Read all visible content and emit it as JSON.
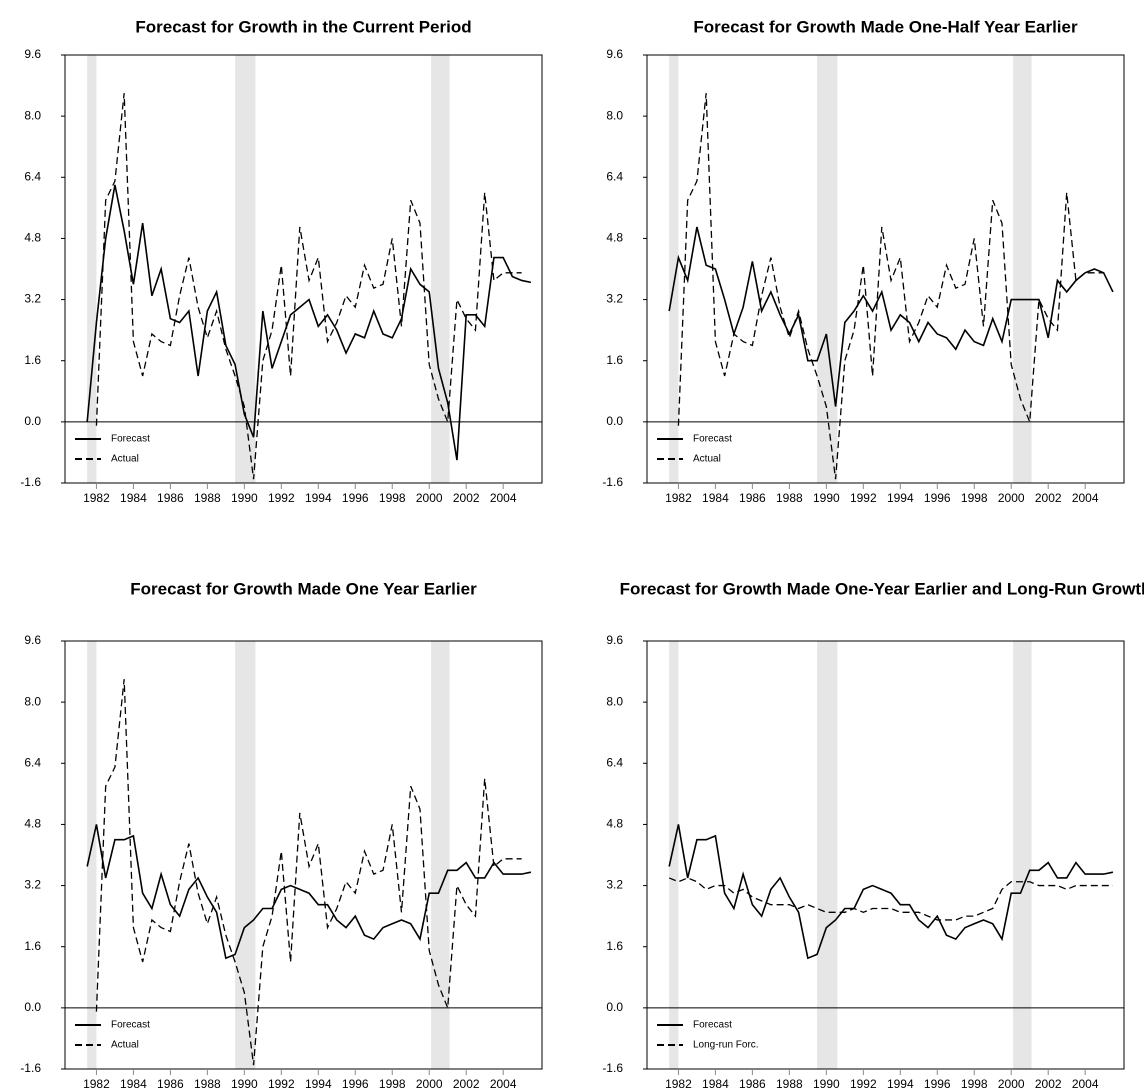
{
  "chart_data": [
    {
      "type": "line",
      "title": "Forecast for Growth in the Current Period",
      "x": [
        1981.5,
        1982,
        1982.5,
        1983,
        1983.5,
        1984,
        1984.5,
        1985,
        1985.5,
        1986,
        1986.5,
        1987,
        1987.5,
        1988,
        1988.5,
        1989,
        1989.5,
        1990,
        1990.5,
        1991,
        1991.5,
        1992,
        1992.5,
        1993,
        1993.5,
        1994,
        1994.5,
        1995,
        1995.5,
        1996,
        1996.5,
        1997,
        1997.5,
        1998,
        1998.5,
        1999,
        1999.5,
        2000,
        2000.5,
        2001,
        2001.5,
        2002,
        2002.5,
        2003,
        2003.5,
        2004,
        2004.5,
        2005,
        2005.5
      ],
      "series": [
        {
          "name": "Forecast",
          "color": "#000000",
          "line_style": "solid",
          "values": [
            0.0,
            2.6,
            4.8,
            6.2,
            5.0,
            3.6,
            5.2,
            3.3,
            4.0,
            2.7,
            2.6,
            2.9,
            1.2,
            2.9,
            3.4,
            2.0,
            1.5,
            0.2,
            -0.4,
            2.9,
            1.4,
            2.1,
            2.8,
            3.0,
            3.2,
            2.5,
            2.8,
            2.4,
            1.8,
            2.3,
            2.2,
            2.9,
            2.3,
            2.2,
            2.7,
            4.0,
            3.6,
            3.4,
            1.4,
            0.5,
            -1.0,
            2.8,
            2.8,
            2.5,
            4.3,
            4.3,
            3.8,
            3.7,
            3.65
          ]
        },
        {
          "name": "Actual",
          "color": "#000000",
          "line_style": "dashed",
          "values": [
            null,
            -0.1,
            5.8,
            6.3,
            8.6,
            2.1,
            1.2,
            2.3,
            2.1,
            2.0,
            3.3,
            4.3,
            3.0,
            2.2,
            2.9,
            1.9,
            1.2,
            0.4,
            -1.5,
            1.6,
            2.4,
            4.1,
            1.2,
            5.1,
            3.7,
            4.3,
            2.1,
            2.6,
            3.3,
            3.0,
            4.1,
            3.5,
            3.6,
            4.8,
            2.5,
            5.8,
            5.2,
            1.5,
            0.6,
            0.0,
            3.2,
            2.7,
            2.4,
            6.0,
            3.7,
            3.9,
            3.9,
            3.9,
            null
          ]
        }
      ],
      "xlim": [
        1980.3,
        2006.1
      ],
      "xticks": [
        1982,
        1984,
        1986,
        1988,
        1990,
        1992,
        1994,
        1996,
        1998,
        2000,
        2002,
        2004
      ],
      "ylim": [
        -1.6,
        9.6
      ],
      "yticks": [
        9.6,
        {
          "value": 8,
          "label": "8.0"
        },
        6.4,
        4.8,
        3.2,
        1.6,
        {
          "value": 0,
          "label": "0.0"
        },
        -1.6
      ],
      "shaded_periods": [
        [
          1981.5,
          1982.0
        ],
        [
          1989.5,
          1990.6
        ],
        [
          2000.1,
          2001.1
        ]
      ],
      "reference_line": 0,
      "legend": "lower left"
    },
    {
      "type": "line",
      "title": "Forecast for Growth Made One-Half Year Earlier",
      "x": [
        1981.5,
        1982,
        1982.5,
        1983,
        1983.5,
        1984,
        1984.5,
        1985,
        1985.5,
        1986,
        1986.5,
        1987,
        1987.5,
        1988,
        1988.5,
        1989,
        1989.5,
        1990,
        1990.5,
        1991,
        1991.5,
        1992,
        1992.5,
        1993,
        1993.5,
        1994,
        1994.5,
        1995,
        1995.5,
        1996,
        1996.5,
        1997,
        1997.5,
        1998,
        1998.5,
        1999,
        1999.5,
        2000,
        2000.5,
        2001,
        2001.5,
        2002,
        2002.5,
        2003,
        2003.5,
        2004,
        2004.5,
        2005,
        2005.5
      ],
      "series": [
        {
          "name": "Forecast",
          "color": "#000000",
          "line_style": "solid",
          "values": [
            2.9,
            4.3,
            3.7,
            5.1,
            4.1,
            4.0,
            3.2,
            2.3,
            3.0,
            4.2,
            2.9,
            3.4,
            2.8,
            2.3,
            2.8,
            1.6,
            1.6,
            2.3,
            0.4,
            2.6,
            2.9,
            3.3,
            2.9,
            3.4,
            2.4,
            2.8,
            2.6,
            2.1,
            2.6,
            2.3,
            2.2,
            1.9,
            2.4,
            2.1,
            2.0,
            2.7,
            2.1,
            3.2,
            3.2,
            3.2,
            3.2,
            2.2,
            3.7,
            3.4,
            3.7,
            3.9,
            4.0,
            3.9,
            3.4
          ]
        },
        {
          "name": "Actual",
          "color": "#000000",
          "line_style": "dashed",
          "values": [
            null,
            -0.1,
            5.8,
            6.3,
            8.6,
            2.1,
            1.2,
            2.3,
            2.1,
            2.0,
            3.3,
            4.3,
            3.0,
            2.2,
            2.9,
            1.9,
            1.2,
            0.4,
            -1.5,
            1.6,
            2.4,
            4.1,
            1.2,
            5.1,
            3.7,
            4.3,
            2.1,
            2.6,
            3.3,
            3.0,
            4.1,
            3.5,
            3.6,
            4.8,
            2.5,
            5.8,
            5.2,
            1.5,
            0.6,
            0.0,
            3.2,
            2.7,
            2.4,
            6.0,
            3.7,
            3.9,
            3.9,
            3.9,
            null
          ]
        }
      ],
      "xlim": [
        1980.3,
        2006.1
      ],
      "xticks": [
        1982,
        1984,
        1986,
        1988,
        1990,
        1992,
        1994,
        1996,
        1998,
        2000,
        2002,
        2004
      ],
      "ylim": [
        -1.6,
        9.6
      ],
      "yticks": [
        9.6,
        {
          "value": 8,
          "label": "8.0"
        },
        6.4,
        4.8,
        3.2,
        1.6,
        {
          "value": 0,
          "label": "0.0"
        },
        -1.6
      ],
      "shaded_periods": [
        [
          1981.5,
          1982.0
        ],
        [
          1989.5,
          1990.6
        ],
        [
          2000.1,
          2001.1
        ]
      ],
      "reference_line": 0,
      "legend": "lower left"
    },
    {
      "type": "line",
      "title": "Forecast for Growth Made One Year Earlier",
      "x": [
        1981.5,
        1982,
        1982.5,
        1983,
        1983.5,
        1984,
        1984.5,
        1985,
        1985.5,
        1986,
        1986.5,
        1987,
        1987.5,
        1988,
        1988.5,
        1989,
        1989.5,
        1990,
        1990.5,
        1991,
        1991.5,
        1992,
        1992.5,
        1993,
        1993.5,
        1994,
        1994.5,
        1995,
        1995.5,
        1996,
        1996.5,
        1997,
        1997.5,
        1998,
        1998.5,
        1999,
        1999.5,
        2000,
        2000.5,
        2001,
        2001.5,
        2002,
        2002.5,
        2003,
        2003.5,
        2004,
        2004.5,
        2005,
        2005.5
      ],
      "series": [
        {
          "name": "Forecast",
          "color": "#000000",
          "line_style": "solid",
          "values": [
            3.7,
            4.8,
            3.4,
            4.4,
            4.4,
            4.5,
            3.0,
            2.6,
            3.5,
            2.7,
            2.4,
            3.1,
            3.4,
            2.9,
            2.5,
            1.3,
            1.4,
            2.1,
            2.3,
            2.6,
            2.6,
            3.1,
            3.2,
            3.1,
            3.0,
            2.7,
            2.7,
            2.3,
            2.1,
            2.4,
            1.9,
            1.8,
            2.1,
            2.2,
            2.3,
            2.2,
            1.8,
            3.0,
            3.0,
            3.6,
            3.6,
            3.8,
            3.4,
            3.4,
            3.8,
            3.5,
            3.5,
            3.5,
            3.55
          ]
        },
        {
          "name": "Actual",
          "color": "#000000",
          "line_style": "dashed",
          "values": [
            null,
            -0.1,
            5.8,
            6.3,
            8.6,
            2.1,
            1.2,
            2.3,
            2.1,
            2.0,
            3.3,
            4.3,
            3.0,
            2.2,
            2.9,
            1.9,
            1.2,
            0.4,
            -1.5,
            1.6,
            2.4,
            4.1,
            1.2,
            5.1,
            3.7,
            4.3,
            2.1,
            2.6,
            3.3,
            3.0,
            4.1,
            3.5,
            3.6,
            4.8,
            2.5,
            5.8,
            5.2,
            1.5,
            0.6,
            0.0,
            3.2,
            2.7,
            2.4,
            6.0,
            3.7,
            3.9,
            3.9,
            3.9,
            null
          ]
        }
      ],
      "xlim": [
        1980.3,
        2006.1
      ],
      "xticks": [
        1982,
        1984,
        1986,
        1988,
        1990,
        1992,
        1994,
        1996,
        1998,
        2000,
        2002,
        2004
      ],
      "ylim": [
        -1.6,
        9.6
      ],
      "yticks": [
        9.6,
        {
          "value": 8,
          "label": "8.0"
        },
        6.4,
        4.8,
        3.2,
        1.6,
        {
          "value": 0,
          "label": "0.0"
        },
        -1.6
      ],
      "shaded_periods": [
        [
          1981.5,
          1982.0
        ],
        [
          1989.5,
          1990.6
        ],
        [
          2000.1,
          2001.1
        ]
      ],
      "reference_line": 0,
      "legend": "lower left"
    },
    {
      "type": "line",
      "title": "Forecast for Growth Made One-Year Earlier and Long-Run Growth",
      "x": [
        1981.5,
        1982,
        1982.5,
        1983,
        1983.5,
        1984,
        1984.5,
        1985,
        1985.5,
        1986,
        1986.5,
        1987,
        1987.5,
        1988,
        1988.5,
        1989,
        1989.5,
        1990,
        1990.5,
        1991,
        1991.5,
        1992,
        1992.5,
        1993,
        1993.5,
        1994,
        1994.5,
        1995,
        1995.5,
        1996,
        1996.5,
        1997,
        1997.5,
        1998,
        1998.5,
        1999,
        1999.5,
        2000,
        2000.5,
        2001,
        2001.5,
        2002,
        2002.5,
        2003,
        2003.5,
        2004,
        2004.5,
        2005,
        2005.5
      ],
      "series": [
        {
          "name": "Forecast",
          "color": "#000000",
          "line_style": "solid",
          "values": [
            3.7,
            4.8,
            3.4,
            4.4,
            4.4,
            4.5,
            3.0,
            2.6,
            3.5,
            2.7,
            2.4,
            3.1,
            3.4,
            2.9,
            2.5,
            1.3,
            1.4,
            2.1,
            2.3,
            2.6,
            2.6,
            3.1,
            3.2,
            3.1,
            3.0,
            2.7,
            2.7,
            2.3,
            2.1,
            2.4,
            1.9,
            1.8,
            2.1,
            2.2,
            2.3,
            2.2,
            1.8,
            3.0,
            3.0,
            3.6,
            3.6,
            3.8,
            3.4,
            3.4,
            3.8,
            3.5,
            3.5,
            3.5,
            3.55
          ]
        },
        {
          "name": "Long-run Forc.",
          "color": "#000000",
          "line_style": "dashed",
          "values": [
            3.4,
            3.3,
            3.4,
            3.3,
            3.1,
            3.2,
            3.2,
            3.0,
            3.1,
            2.9,
            2.8,
            2.7,
            2.7,
            2.7,
            2.6,
            2.7,
            2.6,
            2.5,
            2.5,
            2.5,
            2.6,
            2.5,
            2.6,
            2.6,
            2.6,
            2.5,
            2.5,
            2.5,
            2.4,
            2.3,
            2.3,
            2.3,
            2.4,
            2.4,
            2.5,
            2.6,
            3.1,
            3.3,
            3.3,
            3.3,
            3.2,
            3.2,
            3.2,
            3.1,
            3.2,
            3.2,
            3.2,
            3.2,
            3.2
          ]
        }
      ],
      "xlim": [
        1980.3,
        2006.1
      ],
      "xticks": [
        1982,
        1984,
        1986,
        1988,
        1990,
        1992,
        1994,
        1996,
        1998,
        2000,
        2002,
        2004
      ],
      "ylim": [
        -1.6,
        9.6
      ],
      "yticks": [
        9.6,
        {
          "value": 8,
          "label": "8.0"
        },
        6.4,
        4.8,
        3.2,
        1.6,
        {
          "value": 0,
          "label": "0.0"
        },
        -1.6
      ],
      "shaded_periods": [
        [
          1981.5,
          1982.0
        ],
        [
          1989.5,
          1990.6
        ],
        [
          2000.1,
          2001.1
        ]
      ],
      "reference_line": 0,
      "legend": "lower left"
    }
  ]
}
